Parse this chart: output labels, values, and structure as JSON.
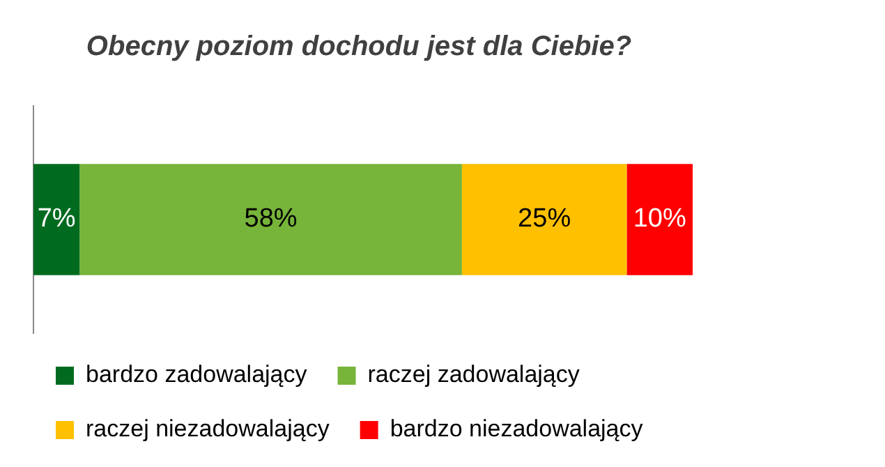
{
  "chart_data": {
    "type": "bar",
    "title": "Obecny poziom dochodu jest dla Ciebie?",
    "orientation": "horizontal",
    "stacked": true,
    "categories": [
      null
    ],
    "legend": "bottom",
    "grid": false,
    "series": [
      {
        "name": "bardzo zadowalający",
        "color": "#006b1f",
        "values": [
          7
        ],
        "value_labels": [
          "7%"
        ]
      },
      {
        "name": "raczej zadowalający",
        "color": "#77b43a",
        "values": [
          58
        ],
        "value_labels": [
          "58%"
        ]
      },
      {
        "name": "raczej niezadowalający",
        "color": "#ffc000",
        "values": [
          25
        ],
        "value_labels": [
          "25%"
        ]
      },
      {
        "name": "bardzo niezadowalający",
        "color": "#ff0000",
        "values": [
          10
        ],
        "value_labels": [
          "10%"
        ]
      }
    ]
  }
}
